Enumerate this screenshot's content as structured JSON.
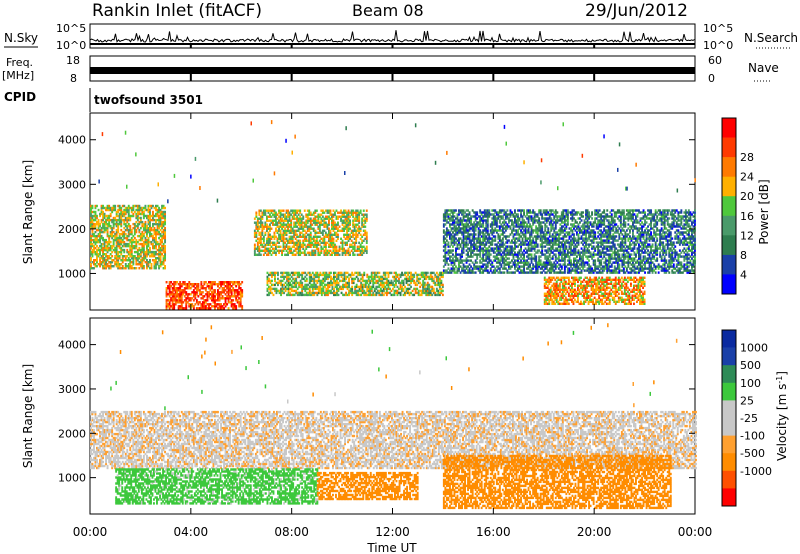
{
  "header": {
    "station": "Rankin Inlet (fitACF)",
    "beam": "Beam 08",
    "date": "29/Jun/2012"
  },
  "panels": {
    "nsky": {
      "label": "N.Sky",
      "ticks": [
        "10^5",
        "10^0"
      ]
    },
    "nsearch": {
      "label": "N.Search",
      "ticks": [
        "10^5",
        "10^0"
      ]
    },
    "freq": {
      "label": "Freq.",
      "unit": "[MHz]",
      "ticks": [
        "18",
        "8"
      ]
    },
    "nave": {
      "label": "Nave",
      "ticks": [
        "60",
        "0"
      ]
    },
    "cpid": {
      "label": "CPID",
      "value": "twofsound 3501"
    }
  },
  "colors": {
    "power": [
      "#0000ff",
      "#1a40a8",
      "#2e7d4f",
      "#4a9a6a",
      "#4fc83c",
      "#ffb000",
      "#ff7a00",
      "#ff3a00",
      "#ff0000"
    ],
    "velocity": [
      "#ff0000",
      "#ff5000",
      "#ff8c00",
      "#ffa030",
      "#c8c8c8",
      "#c8c8c8",
      "#3cc83c",
      "#2e8b57",
      "#1a40a8",
      "#0a2aa0"
    ]
  },
  "chart_data": [
    {
      "type": "heatmap",
      "name_key": "power",
      "xlabel": "Time UT",
      "ylabel": "Slant Range [km]",
      "colorbar_label": "Power [dB]",
      "colorbar_ticks": [
        "4",
        "8",
        "12",
        "16",
        "20",
        "24",
        "28"
      ],
      "x_ticks": [
        "00:00",
        "04:00",
        "08:00",
        "12:00",
        "16:00",
        "20:00",
        "00:00"
      ],
      "y_ticks": [
        "1000",
        "2000",
        "3000",
        "4000"
      ],
      "xlim": [
        0,
        24
      ],
      "ylim": [
        180,
        4600
      ],
      "regions": [
        {
          "t0": 0.0,
          "t1": 3.0,
          "r0": 1100,
          "r1": 2500,
          "level": 20
        },
        {
          "t0": 3.0,
          "t1": 6.0,
          "r0": 200,
          "r1": 800,
          "level": 30
        },
        {
          "t0": 6.5,
          "t1": 11.0,
          "r0": 1400,
          "r1": 2400,
          "level": 20
        },
        {
          "t0": 7.0,
          "t1": 14.0,
          "r0": 500,
          "r1": 1000,
          "level": 18
        },
        {
          "t0": 14.0,
          "t1": 24.0,
          "r0": 1000,
          "r1": 2400,
          "level": 10
        },
        {
          "t0": 18.0,
          "t1": 22.0,
          "r0": 300,
          "r1": 900,
          "level": 24
        }
      ]
    },
    {
      "type": "heatmap",
      "name_key": "velocity",
      "xlabel": "Time UT",
      "ylabel": "Slant Range [km]",
      "colorbar_label": "Velocity [m s^-1]",
      "colorbar_ticks": [
        "1000",
        "500",
        "100",
        "25",
        "-25",
        "-100",
        "-500",
        "-1000"
      ],
      "x_ticks": [
        "00:00",
        "04:00",
        "08:00",
        "12:00",
        "16:00",
        "20:00",
        "00:00"
      ],
      "y_ticks": [
        "1000",
        "2000",
        "3000",
        "4000"
      ],
      "xlim": [
        0,
        24
      ],
      "ylim": [
        180,
        4600
      ],
      "regions": [
        {
          "t0": 0.0,
          "t1": 24.0,
          "r0": 1200,
          "r1": 2500,
          "level": 0
        },
        {
          "t0": 1.0,
          "t1": 9.0,
          "r0": 400,
          "r1": 1200,
          "level": 150
        },
        {
          "t0": 9.0,
          "t1": 13.0,
          "r0": 500,
          "r1": 1100,
          "level": -300
        },
        {
          "t0": 14.0,
          "t1": 23.0,
          "r0": 300,
          "r1": 1500,
          "level": -300
        }
      ]
    }
  ]
}
